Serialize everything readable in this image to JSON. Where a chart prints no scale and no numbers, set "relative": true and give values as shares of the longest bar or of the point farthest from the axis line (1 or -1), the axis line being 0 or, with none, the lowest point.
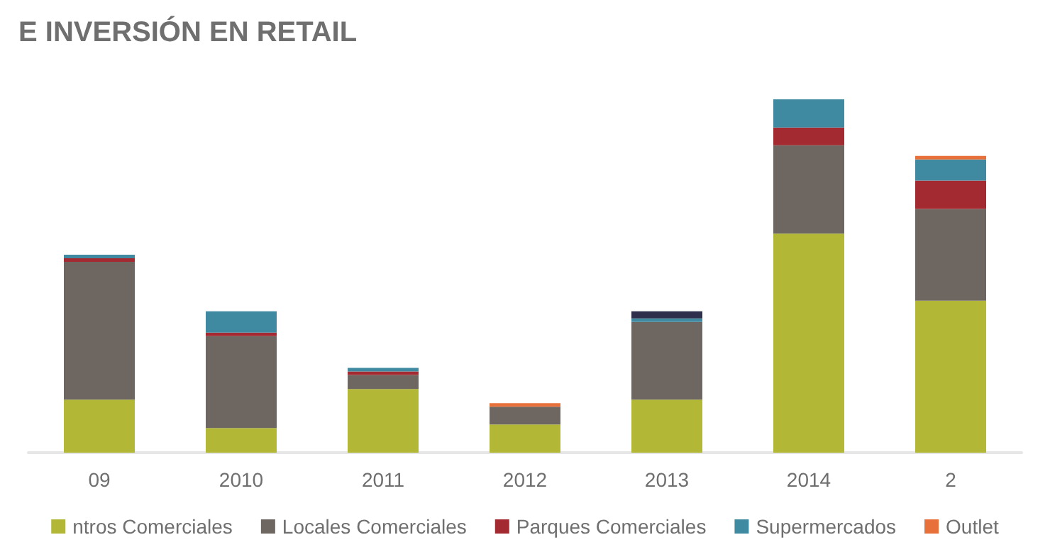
{
  "chart_data": {
    "type": "bar",
    "title": "E INVERSIÓN EN RETAIL",
    "stacked": true,
    "relative": true,
    "legend": "bottom",
    "categories": [
      "09",
      "2010",
      "2011",
      "2012",
      "2013",
      "2014",
      "2"
    ],
    "series": [
      {
        "name": "ntros Comerciales",
        "color": "#b2b736",
        "values": [
          0.15,
          0.07,
          0.18,
          0.08,
          0.15,
          0.62,
          0.43
        ]
      },
      {
        "name": "Locales Comerciales",
        "color": "#6e6661",
        "values": [
          0.39,
          0.26,
          0.04,
          0.05,
          0.22,
          0.25,
          0.26
        ]
      },
      {
        "name": "Parques Comerciales",
        "color": "#a32a31",
        "values": [
          0.01,
          0.01,
          0.01,
          null,
          null,
          0.05,
          0.08
        ]
      },
      {
        "name": "Supermercados",
        "color": "#3f8aa1",
        "values": [
          0.01,
          0.06,
          0.01,
          null,
          0.01,
          0.08,
          0.06
        ]
      },
      {
        "name": "Outlet",
        "color": "#e8703a",
        "values": [
          null,
          null,
          null,
          0.01,
          null,
          null,
          0.01
        ]
      },
      {
        "color": "#2e2f4a",
        "values": [
          null,
          null,
          null,
          null,
          0.02,
          null,
          null
        ]
      }
    ]
  }
}
